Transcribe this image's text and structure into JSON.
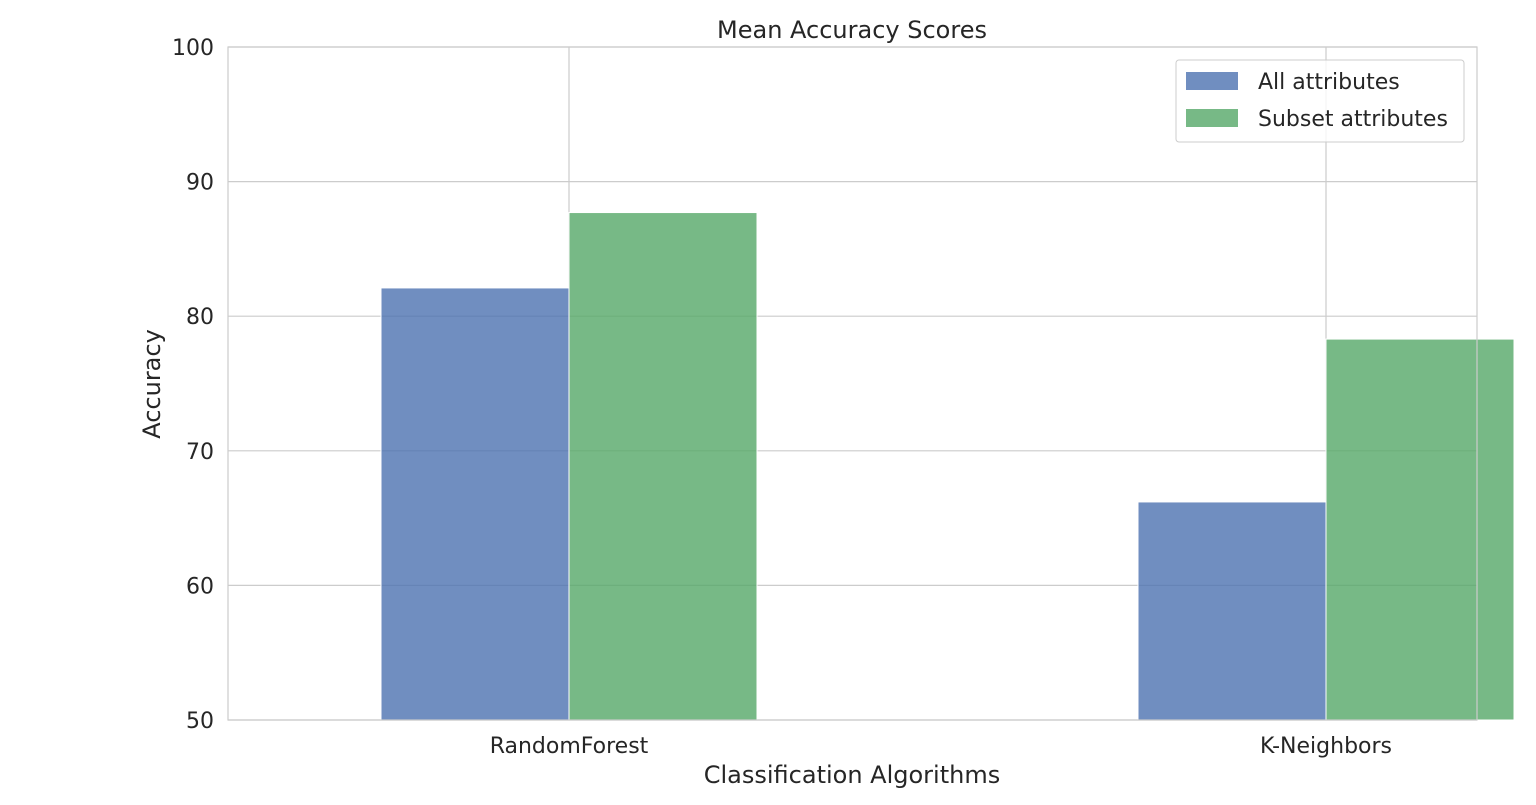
{
  "chart_data": {
    "type": "bar",
    "title": "Mean Accuracy Scores",
    "xlabel": "Classification Algorithms",
    "ylabel": "Accuracy",
    "categories": [
      "RandomForest",
      "K-Neighbors"
    ],
    "series": [
      {
        "name": "All attributes",
        "values": [
          82.1,
          66.2
        ],
        "color": "#4c72b0"
      },
      {
        "name": "Subset attributes",
        "values": [
          87.7,
          78.3
        ],
        "color": "#55a868"
      }
    ],
    "ylim": [
      50,
      100
    ],
    "yticks": [
      50,
      60,
      70,
      80,
      90,
      100
    ],
    "grid": true,
    "legend_position": "upper right"
  }
}
